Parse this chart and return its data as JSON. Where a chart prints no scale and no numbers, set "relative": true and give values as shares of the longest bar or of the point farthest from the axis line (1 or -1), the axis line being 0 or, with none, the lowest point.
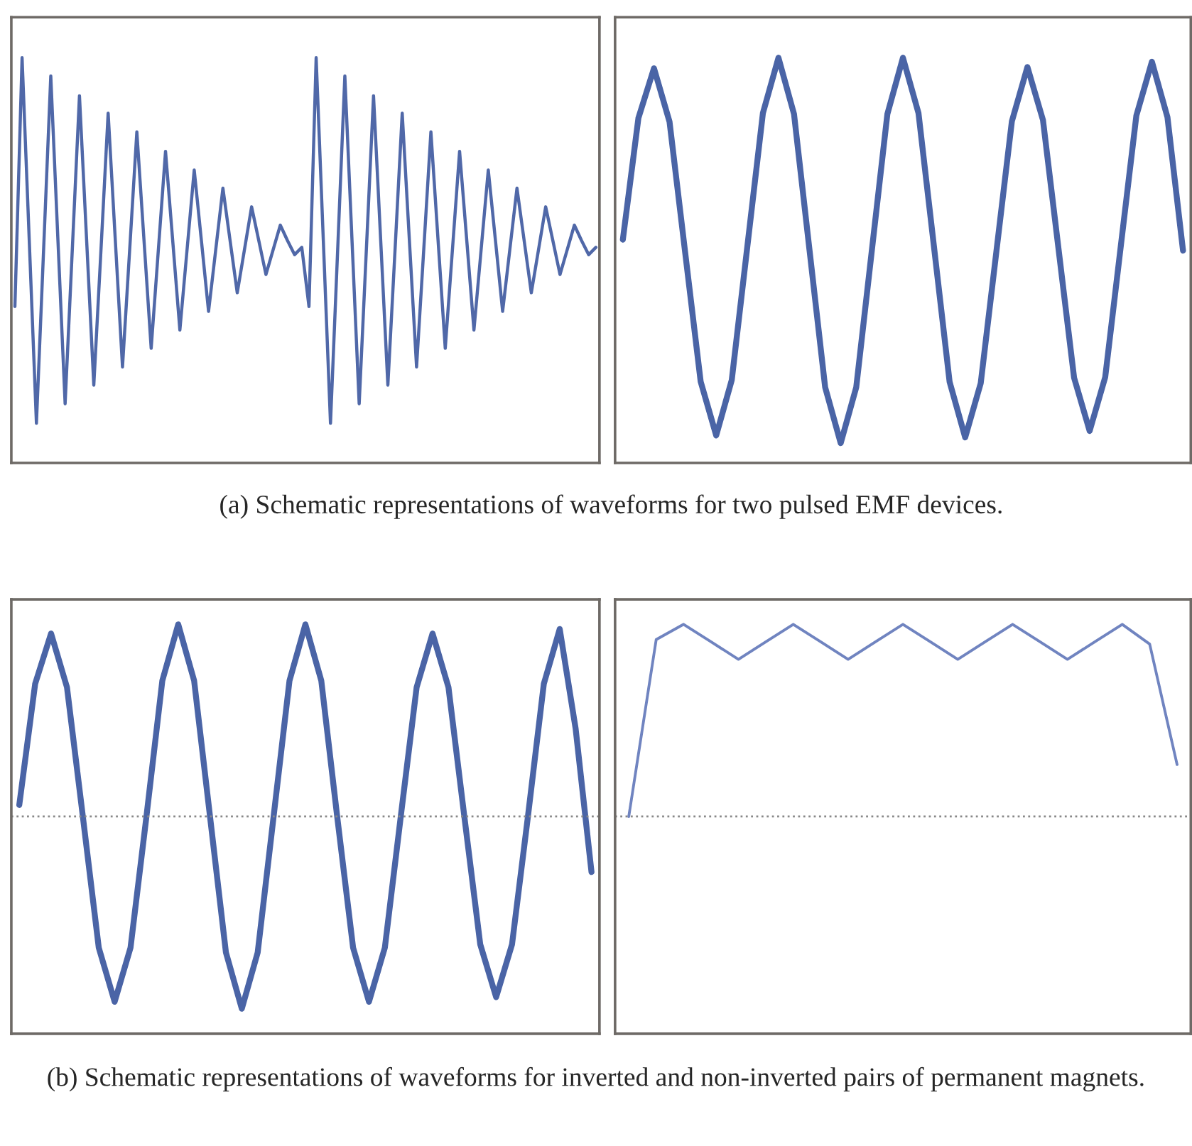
{
  "chart_data": [
    {
      "type": "line",
      "relative": true,
      "categories": [
        null,
        null,
        null,
        null,
        null,
        null,
        null,
        null,
        null,
        null,
        null,
        null,
        null,
        null,
        null,
        null,
        null,
        null,
        null,
        null,
        null,
        null,
        null,
        null,
        null,
        null,
        null,
        null,
        null,
        null,
        null,
        null,
        null,
        null,
        null,
        null,
        null,
        null,
        null,
        null,
        null,
        null,
        null,
        null,
        null,
        null,
        null,
        null,
        null,
        null,
        null,
        null,
        null,
        null,
        null,
        null,
        null,
        null,
        null,
        null,
        null,
        null,
        null,
        null,
        null,
        null,
        null,
        null,
        null,
        null,
        null,
        null,
        null,
        null,
        null,
        null,
        null,
        null,
        null,
        null,
        null,
        null
      ],
      "series": [
        {
          "color": "#5068a8",
          "values": [
            0.386,
            1.0,
            0.549,
            0.098,
            0.526,
            0.955,
            0.549,
            0.146,
            0.526,
            0.906,
            0.549,
            0.192,
            0.526,
            0.863,
            0.549,
            0.237,
            0.526,
            0.817,
            0.549,
            0.283,
            0.526,
            0.769,
            0.549,
            0.328,
            0.526,
            0.723,
            0.549,
            0.374,
            0.526,
            0.678,
            0.549,
            0.42,
            0.526,
            0.632,
            0.549,
            0.465,
            0.526,
            0.587,
            0.549,
            0.514,
            0.532,
            0.386,
            1.0,
            0.549,
            0.098,
            0.526,
            0.955,
            0.549,
            0.146,
            0.526,
            0.906,
            0.549,
            0.192,
            0.526,
            0.863,
            0.549,
            0.237,
            0.526,
            0.817,
            0.549,
            0.283,
            0.526,
            0.769,
            0.549,
            0.328,
            0.526,
            0.723,
            0.549,
            0.374,
            0.526,
            0.678,
            0.549,
            0.42,
            0.526,
            0.632,
            0.549,
            0.465,
            0.526,
            0.587,
            0.549,
            0.514,
            0.532
          ]
        }
      ],
      "annotations": [
        "(a) Schematic representations of waveforms for two pulsed EMF devices."
      ]
    },
    {
      "type": "line",
      "relative": true,
      "categories": [
        null,
        null,
        null,
        null,
        null,
        null,
        null,
        null,
        null,
        null,
        null,
        null,
        null,
        null,
        null,
        null,
        null,
        null,
        null,
        null,
        null,
        null,
        null,
        null,
        null,
        null,
        null,
        null,
        null,
        null,
        null,
        null,
        null,
        null,
        null,
        null,
        null
      ],
      "series": [
        {
          "color": "#4a64a6",
          "values": [
            0.551,
            0.851,
            0.974,
            0.842,
            0.521,
            0.201,
            0.068,
            0.205,
            0.534,
            0.863,
            1.0,
            0.861,
            0.524,
            0.187,
            0.049,
            0.187,
            0.524,
            0.861,
            1.0,
            0.863,
            0.532,
            0.2,
            0.063,
            0.197,
            0.52,
            0.843,
            0.977,
            0.846,
            0.528,
            0.21,
            0.079,
            0.212,
            0.535,
            0.857,
            0.99,
            0.853,
            0.524
          ]
        }
      ]
    },
    {
      "type": "line",
      "relative": true,
      "categories": [
        null,
        null,
        null,
        null,
        null,
        null,
        null,
        null,
        null,
        null,
        null,
        null,
        null,
        null,
        null,
        null,
        null,
        null,
        null,
        null,
        null,
        null,
        null,
        null,
        null,
        null,
        null,
        null,
        null,
        null,
        null,
        null,
        null,
        null,
        null,
        null,
        null
      ],
      "series": [
        {
          "color": "#4a64a6",
          "values": [
            0.06,
            0.691,
            0.952,
            0.673,
            0,
            -0.682,
            -0.964,
            -0.682,
            0,
            0.707,
            1.0,
            0.707,
            0,
            -0.707,
            -1.0,
            -0.707,
            0,
            0.707,
            1.0,
            0.707,
            0,
            -0.682,
            -0.964,
            -0.682,
            0,
            0.673,
            0.952,
            0.673,
            0,
            -0.665,
            -0.94,
            -0.665,
            0,
            0.69,
            0.976,
            0.458,
            -0.289
          ]
        }
      ],
      "ref_lines": [
        {
          "axis": "y",
          "value": 0,
          "color": "#888888",
          "line_style": "dotted"
        }
      ],
      "annotations": [
        "(b) Schematic representations of waveforms for inverted and non-inverted pairs of permanent magnets."
      ]
    },
    {
      "type": "line",
      "relative": true,
      "categories": [
        null,
        null,
        null,
        null,
        null,
        null,
        null,
        null,
        null,
        null,
        null,
        null,
        null,
        null,
        null,
        null,
        null,
        null,
        null,
        null,
        null
      ],
      "series": [
        {
          "color": "#7084c0",
          "values": [
            0,
            0.921,
            1.0,
            0.909,
            0.818,
            0.909,
            1.0,
            0.909,
            0.818,
            0.909,
            1.0,
            0.909,
            0.818,
            0.909,
            1.0,
            0.909,
            0.818,
            0.909,
            1.0,
            0.897,
            0.27
          ]
        }
      ],
      "ref_lines": [
        {
          "axis": "y",
          "value": 0,
          "color": "#888888",
          "line_style": "dotted"
        }
      ]
    }
  ]
}
